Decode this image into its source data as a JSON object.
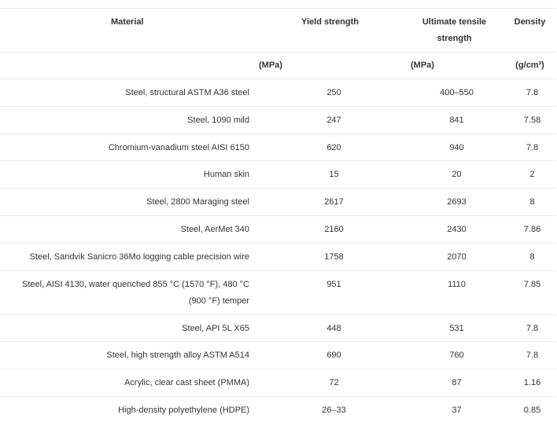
{
  "headers": {
    "material": "Material",
    "yield": "Yield strength",
    "ultimate": "Ultimate tensile strength",
    "density": "Density"
  },
  "units": {
    "material": "",
    "yield": "(MPa)",
    "ultimate": "(MPa)",
    "density": "(g/cm³)"
  },
  "rows": [
    {
      "material": "Steel, structural ASTM A36 steel",
      "yield": "250",
      "ultimate": "400–550",
      "density": "7.8"
    },
    {
      "material": "Steel, 1090 mild",
      "yield": "247",
      "ultimate": "841",
      "density": "7.58"
    },
    {
      "material": "Chromium-vanadium steel AISI 6150",
      "yield": "620",
      "ultimate": "940",
      "density": "7.8"
    },
    {
      "material": "Human skin",
      "yield": "15",
      "ultimate": "20",
      "density": "2"
    },
    {
      "material": "Steel, 2800 Maraging steel",
      "yield": "2617",
      "ultimate": "2693",
      "density": "8"
    },
    {
      "material": "Steel, AerMet 340",
      "yield": "2160",
      "ultimate": "2430",
      "density": "7.86"
    },
    {
      "material": "Steel, Sandvik Sanicro 36Mo logging cable precision wire",
      "yield": "1758",
      "ultimate": "2070",
      "density": "8"
    },
    {
      "material": "Steel, AISI 4130, water quenched 855 °C (1570 °F), 480 °C (900 °F) temper",
      "yield": "951",
      "ultimate": "1110",
      "density": "7.85"
    },
    {
      "material": "Steel, API 5L X65",
      "yield": "448",
      "ultimate": "531",
      "density": "7.8"
    },
    {
      "material": "Steel, high strength alloy ASTM A514",
      "yield": "690",
      "ultimate": "760",
      "density": "7.8"
    },
    {
      "material": "Acrylic, clear cast sheet (PMMA)",
      "yield": "72",
      "ultimate": "87",
      "density": "1.16"
    },
    {
      "material": "High-density polyethylene (HDPE)",
      "yield": "26–33",
      "ultimate": "37",
      "density": "0.85"
    }
  ]
}
